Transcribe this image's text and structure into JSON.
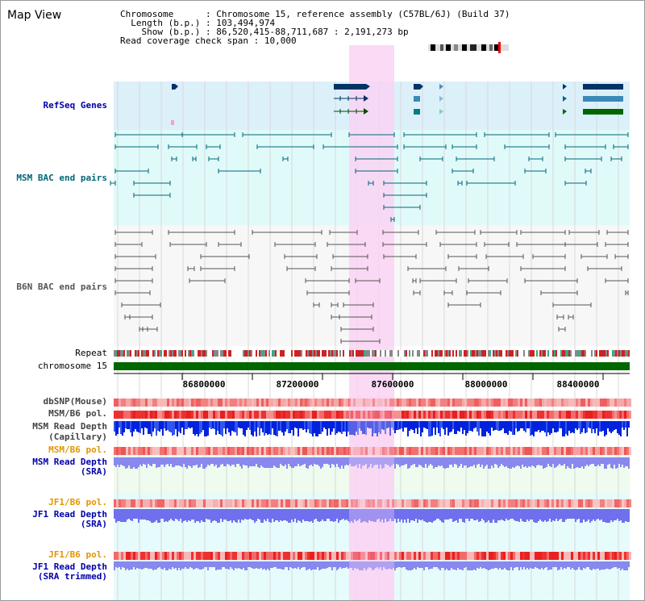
{
  "title": "Map View",
  "info": {
    "chromosome_label": "Chromosome",
    "chromosome_value": "Chromosome 15, reference assembly (C57BL/6J) (Build 37)",
    "length_label": "Length (b.p.)",
    "length_value": "103,494,974",
    "show_label": "Show (b.p.)",
    "show_value": "86,520,415-88,711,687 : 2,191,273 bp",
    "coverage_label": "Read coverage check span",
    "coverage_value": "10,000"
  },
  "tracks": {
    "refseq": "RefSeq Genes",
    "msm_bac": "MSM BAC end pairs",
    "b6n_bac": "B6N BAC end pairs",
    "repeat": "Repeat",
    "chromosome": "chromosome 15",
    "dbsnp": "dbSNP(Mouse)",
    "msm_b6_pol": "MSM/B6 pol.",
    "msm_depth_cap_1": "MSM Read Depth",
    "msm_depth_cap_2": "(Capillary)",
    "msm_b6_pol_2": "MSM/B6 pol.",
    "msm_depth_sra_1": "MSM Read Depth",
    "msm_depth_sra_2": "(SRA)",
    "jf1_b6_pol": "JF1/B6 pol.",
    "jf1_depth_sra_1": "JF1 Read Depth",
    "jf1_depth_sra_2": "(SRA)",
    "jf1_b6_pol_2": "JF1/B6 pol.",
    "jf1_depth_trim_1": "JF1 Read Depth",
    "jf1_depth_trim_2": "(SRA trimmed)"
  },
  "axis": {
    "ticks": [
      "86800000",
      "87200000",
      "87600000",
      "88000000",
      "88400000"
    ]
  },
  "colors": {
    "highlight": "#f9d4f3",
    "refseq_bg": "#dcf0fa",
    "msm_bg": "#e0fafa",
    "b6n_bg": "#f7f7f7",
    "gene": "#003366",
    "bac_msm": "#006677",
    "bac_b6n": "#555555",
    "chrom": "#006600"
  }
}
